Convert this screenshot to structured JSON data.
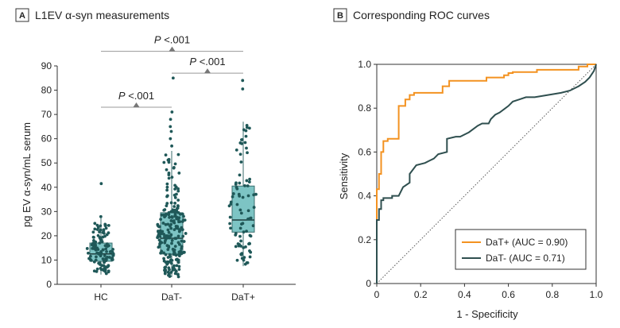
{
  "panels": [
    {
      "tag": "A",
      "title": "L1EV α-syn measurements"
    },
    {
      "tag": "B",
      "title": "Corresponding ROC curves"
    }
  ],
  "colors": {
    "box_fill": "#7dc4c4",
    "box_stroke": "#3b6e6e",
    "dot": "#1f5858",
    "bracket": "#999999",
    "dat_pos": "#f39220",
    "dat_neg": "#2f4f4f",
    "diag": "#555555"
  },
  "chart_data": [
    {
      "type": "box",
      "title": "L1EV α-syn measurements",
      "ylabel": "pg EV α-syn/mL serum",
      "xlabel": "",
      "ylim": [
        0,
        90
      ],
      "yticks": [
        0,
        10,
        20,
        30,
        40,
        50,
        60,
        70,
        80,
        90
      ],
      "categories": [
        "HC",
        "DaT-",
        "DaT+"
      ],
      "boxes": [
        {
          "name": "HC",
          "q1": 9.5,
          "median": 12.5,
          "q3": 17,
          "min": 4,
          "max": 28,
          "outliers": [
            41.5
          ],
          "n": 120
        },
        {
          "name": "DaT-",
          "q1": 12.5,
          "median": 19,
          "q3": 29.5,
          "min": 3,
          "max": 55,
          "outliers": [
            57,
            60,
            63,
            65,
            68,
            71,
            85
          ],
          "n": 230
        },
        {
          "name": "DaT+",
          "q1": 21.5,
          "median": 26.5,
          "q3": 40.5,
          "min": 7.5,
          "max": 67,
          "outliers": [
            80.5,
            84
          ],
          "n": 85
        }
      ],
      "comparisons": [
        {
          "a": "HC",
          "b": "DaT-",
          "label": "P <.001",
          "level": 73
        },
        {
          "a": "DaT-",
          "b": "DaT+",
          "label": "P <.001",
          "level": 87
        },
        {
          "a": "HC",
          "b": "DaT+",
          "label": "P <.001",
          "level": 96
        }
      ]
    },
    {
      "type": "line",
      "title": "Corresponding ROC curves",
      "xlabel": "1 - Specificity",
      "ylabel": "Sensitivity",
      "xlim": [
        0,
        1
      ],
      "ylim": [
        0,
        1
      ],
      "xticks": [
        "0",
        "0.2",
        "0.4",
        "0.6",
        "0.8",
        "1.0"
      ],
      "yticks": [
        "0",
        "0.2",
        "0.4",
        "0.6",
        "0.8",
        "1.0"
      ],
      "legend_position": "bottom-right",
      "series": [
        {
          "name": "DaT+ (AUC = 0.90)",
          "x": [
            0,
            0,
            0.01,
            0.01,
            0.02,
            0.02,
            0.03,
            0.03,
            0.05,
            0.05,
            0.1,
            0.1,
            0.13,
            0.13,
            0.15,
            0.15,
            0.17,
            0.17,
            0.3,
            0.3,
            0.33,
            0.33,
            0.5,
            0.5,
            0.58,
            0.58,
            0.6,
            0.6,
            0.62,
            0.62,
            0.73,
            0.73,
            0.92,
            0.92,
            0.96,
            0.96,
            1.0
          ],
          "y": [
            0,
            0.43,
            0.43,
            0.5,
            0.5,
            0.6,
            0.6,
            0.65,
            0.65,
            0.66,
            0.66,
            0.81,
            0.81,
            0.84,
            0.84,
            0.86,
            0.86,
            0.87,
            0.87,
            0.9,
            0.9,
            0.925,
            0.925,
            0.94,
            0.94,
            0.95,
            0.95,
            0.96,
            0.96,
            0.965,
            0.965,
            0.975,
            0.975,
            0.99,
            0.99,
            1.0,
            1.0
          ]
        },
        {
          "name": "DaT- (AUC = 0.71)",
          "x": [
            0,
            0,
            0.01,
            0.01,
            0.02,
            0.02,
            0.03,
            0.03,
            0.07,
            0.07,
            0.1,
            0.12,
            0.15,
            0.15,
            0.18,
            0.22,
            0.24,
            0.26,
            0.28,
            0.32,
            0.32,
            0.36,
            0.38,
            0.42,
            0.46,
            0.48,
            0.51,
            0.52,
            0.54,
            0.56,
            0.6,
            0.62,
            0.65,
            0.68,
            0.72,
            0.78,
            0.84,
            0.88,
            0.92,
            0.95,
            0.97,
            0.99,
            1.0
          ],
          "y": [
            0,
            0.29,
            0.29,
            0.34,
            0.34,
            0.38,
            0.38,
            0.39,
            0.39,
            0.4,
            0.4,
            0.44,
            0.46,
            0.5,
            0.54,
            0.55,
            0.56,
            0.57,
            0.59,
            0.6,
            0.66,
            0.67,
            0.67,
            0.69,
            0.72,
            0.73,
            0.73,
            0.75,
            0.77,
            0.78,
            0.81,
            0.83,
            0.84,
            0.85,
            0.85,
            0.86,
            0.87,
            0.88,
            0.9,
            0.92,
            0.94,
            0.97,
            1.0
          ]
        }
      ],
      "reference_line": "diagonal"
    }
  ]
}
